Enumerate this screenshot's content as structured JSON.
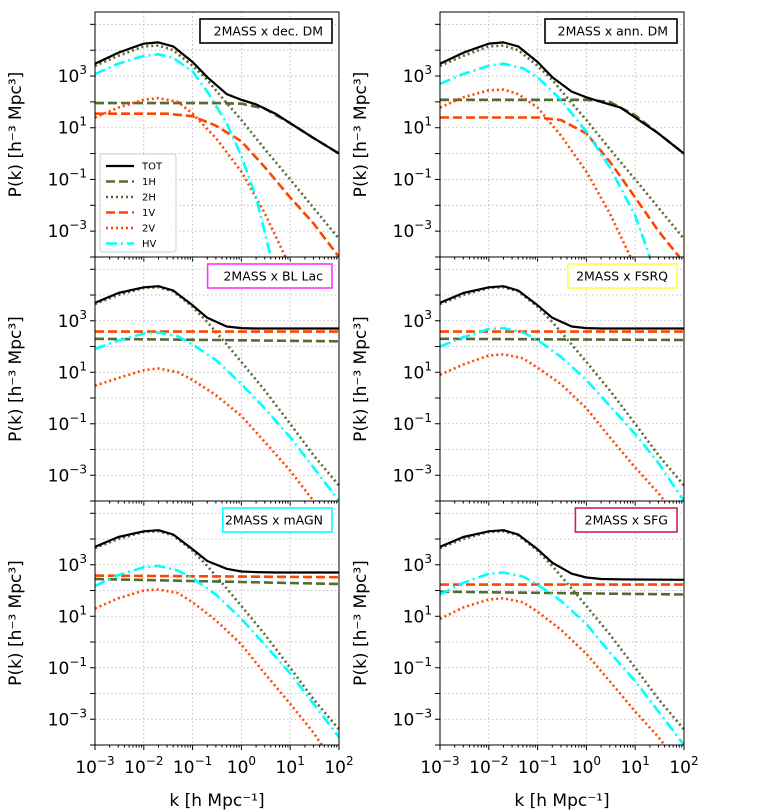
{
  "chart_data": {
    "type": "line",
    "layout": "3x2 grid of log-log panels",
    "xlabel": "k [h Mpc⁻¹]",
    "ylabel": "P(k) [h⁻³ Mpc³]",
    "x_scale": "log",
    "y_scale": "log",
    "xlim": [
      0.001,
      100
    ],
    "ylim": [
      0.0001,
      300000
    ],
    "xtick_exponents": [
      "-3",
      "-2",
      "-1",
      "0",
      "1",
      "2"
    ],
    "ytick_exponents": [
      "3",
      "1",
      "-1",
      "-3"
    ],
    "grid": true,
    "legend": {
      "panel": 0,
      "placement": "lower-left",
      "entries": [
        {
          "key": "TOT",
          "label": "TOT"
        },
        {
          "key": "1H",
          "label": "1H"
        },
        {
          "key": "2H",
          "label": "2H"
        },
        {
          "key": "1V",
          "label": "1V"
        },
        {
          "key": "2V",
          "label": "2V"
        },
        {
          "key": "HV",
          "label": "HV"
        }
      ]
    },
    "styles": {
      "TOT": {
        "color": "#000000",
        "dash": "",
        "width": 2.2
      },
      "1H": {
        "color": "#556b2f",
        "dash": "9,4",
        "width": 2.6
      },
      "2H": {
        "color": "#556b2f",
        "dash": "2,3",
        "width": 2.6
      },
      "1V": {
        "color": "#ff4500",
        "dash": "9,4",
        "width": 2.6
      },
      "2V": {
        "color": "#ff4500",
        "dash": "2,3",
        "width": 2.6
      },
      "HV": {
        "color": "#00ffff",
        "dash": "11,4,2,4",
        "width": 2.6
      }
    },
    "panels": [
      {
        "title": "2MASS x dec. DM",
        "title_border": "#000000",
        "series": {
          "TOT": {
            "x": [
              0.001,
              0.003,
              0.01,
              0.02,
              0.04,
              0.1,
              0.2,
              0.5,
              1,
              2,
              5,
              10,
              30,
              100
            ],
            "y": [
              3000,
              8000,
              18000,
              20000,
              14000,
              3500,
              900,
              200,
              120,
              80,
              35,
              15,
              4,
              1
            ]
          },
          "1H": {
            "x": [
              0.001,
              0.3,
              1,
              3,
              10,
              30,
              100
            ],
            "y": [
              90,
              90,
              85,
              55,
              15,
              4,
              1
            ]
          },
          "2H": {
            "x": [
              0.001,
              0.003,
              0.01,
              0.02,
              0.04,
              0.1,
              0.2,
              0.5,
              1,
              3,
              10,
              30,
              100
            ],
            "y": [
              2500,
              6000,
              14000,
              15000,
              10000,
              2500,
              700,
              90,
              20,
              1.5,
              0.1,
              0.008,
              0.0005
            ]
          },
          "1V": {
            "x": [
              0.001,
              0.03,
              0.1,
              0.3,
              1,
              3,
              10,
              30,
              100
            ],
            "y": [
              35,
              35,
              28,
              12,
              3,
              0.3,
              0.02,
              0.002,
              0.0001
            ]
          },
          "2V": {
            "x": [
              0.001,
              0.003,
              0.01,
              0.02,
              0.05,
              0.1,
              0.3,
              1,
              3,
              8
            ],
            "y": [
              25,
              60,
              120,
              140,
              100,
              35,
              4,
              0.2,
              0.005,
              0.0001
            ]
          },
          "HV": {
            "x": [
              0.001,
              0.003,
              0.01,
              0.02,
              0.04,
              0.1,
              0.2,
              0.5,
              1,
              2,
              4
            ],
            "y": [
              1200,
              3000,
              6000,
              7000,
              5000,
              1500,
              250,
              15,
              0.8,
              0.02,
              0.0001
            ]
          }
        }
      },
      {
        "title": "2MASS x ann. DM",
        "title_border": "#000000",
        "series": {
          "TOT": {
            "x": [
              0.001,
              0.003,
              0.01,
              0.02,
              0.04,
              0.1,
              0.2,
              0.5,
              1,
              2,
              5,
              10,
              30,
              100
            ],
            "y": [
              3000,
              8000,
              18000,
              20000,
              14000,
              3500,
              900,
              250,
              150,
              100,
              60,
              25,
              6,
              1
            ]
          },
          "1H": {
            "x": [
              0.001,
              1,
              3,
              10,
              30,
              100
            ],
            "y": [
              120,
              120,
              100,
              30,
              6,
              1
            ]
          },
          "2H": {
            "x": [
              0.001,
              0.003,
              0.01,
              0.02,
              0.04,
              0.1,
              0.2,
              0.5,
              1,
              3,
              10,
              30,
              100
            ],
            "y": [
              2500,
              6000,
              14000,
              15000,
              10000,
              2500,
              700,
              90,
              20,
              1.5,
              0.1,
              0.008,
              0.0005
            ]
          },
          "1V": {
            "x": [
              0.001,
              0.1,
              0.3,
              1,
              3,
              10,
              30,
              80
            ],
            "y": [
              25,
              25,
              20,
              6,
              0.5,
              0.02,
              0.001,
              0.0001
            ]
          },
          "2V": {
            "x": [
              0.001,
              0.003,
              0.01,
              0.02,
              0.04,
              0.1,
              0.3,
              1,
              3,
              8
            ],
            "y": [
              60,
              150,
              280,
              300,
              200,
              60,
              5,
              0.2,
              0.005,
              0.0001
            ]
          },
          "HV": {
            "x": [
              0.001,
              0.003,
              0.01,
              0.02,
              0.05,
              0.1,
              0.3,
              1,
              3,
              10,
              20
            ],
            "y": [
              500,
              1200,
              2500,
              3000,
              2000,
              900,
              120,
              7,
              0.3,
              0.004,
              0.0001
            ]
          }
        }
      },
      {
        "title": "2MASS x BL Lac",
        "title_border": "#ff33ff",
        "series": {
          "TOT": {
            "x": [
              0.001,
              0.003,
              0.01,
              0.02,
              0.04,
              0.1,
              0.2,
              0.5,
              1,
              2,
              5,
              100
            ],
            "y": [
              5000,
              12000,
              20000,
              22000,
              15000,
              4000,
              1300,
              600,
              520,
              500,
              500,
              500
            ]
          },
          "1H": {
            "x": [
              0.001,
              100
            ],
            "y": [
              200,
              160
            ]
          },
          "2H": {
            "x": [
              0.001,
              0.003,
              0.01,
              0.02,
              0.04,
              0.1,
              0.2,
              0.5,
              1,
              3,
              10,
              30,
              100
            ],
            "y": [
              4500,
              10000,
              19000,
              20000,
              14000,
              3500,
              900,
              120,
              25,
              2,
              0.1,
              0.006,
              0.0004
            ]
          },
          "1V": {
            "x": [
              0.001,
              100
            ],
            "y": [
              380,
              380
            ]
          },
          "2V": {
            "x": [
              0.001,
              0.003,
              0.01,
              0.02,
              0.05,
              0.1,
              0.3,
              1,
              3,
              10,
              30,
              100
            ],
            "y": [
              3,
              6,
              12,
              14,
              10,
              5,
              1.3,
              0.2,
              0.02,
              0.0015,
              0.0001,
              1e-05
            ]
          },
          "HV": {
            "x": [
              0.001,
              0.003,
              0.01,
              0.02,
              0.05,
              0.1,
              0.3,
              1,
              3,
              10,
              30,
              100
            ],
            "y": [
              80,
              170,
              320,
              350,
              250,
              120,
              30,
              3.5,
              0.4,
              0.03,
              0.002,
              0.0001
            ]
          }
        }
      },
      {
        "title": "2MASS x FSRQ",
        "title_border": "#ffff44",
        "series": {
          "TOT": {
            "x": [
              0.001,
              0.003,
              0.01,
              0.02,
              0.04,
              0.1,
              0.2,
              0.5,
              1,
              2,
              5,
              100
            ],
            "y": [
              5000,
              12000,
              20000,
              22000,
              15000,
              4000,
              1300,
              600,
              520,
              500,
              500,
              500
            ]
          },
          "1H": {
            "x": [
              0.001,
              100
            ],
            "y": [
              200,
              180
            ]
          },
          "2H": {
            "x": [
              0.001,
              0.003,
              0.01,
              0.02,
              0.04,
              0.1,
              0.2,
              0.5,
              1,
              3,
              10,
              30,
              100
            ],
            "y": [
              4500,
              10000,
              19000,
              20000,
              14000,
              3500,
              900,
              120,
              25,
              2,
              0.1,
              0.006,
              0.0004
            ]
          },
          "1V": {
            "x": [
              0.001,
              100
            ],
            "y": [
              380,
              380
            ]
          },
          "2V": {
            "x": [
              0.001,
              0.003,
              0.01,
              0.02,
              0.05,
              0.1,
              0.3,
              1,
              3,
              10,
              30,
              100
            ],
            "y": [
              8,
              20,
              45,
              50,
              35,
              15,
              3.5,
              0.4,
              0.03,
              0.002,
              0.0002,
              1e-05
            ]
          },
          "HV": {
            "x": [
              0.001,
              0.003,
              0.01,
              0.02,
              0.05,
              0.1,
              0.3,
              1,
              3,
              10,
              30,
              100
            ],
            "y": [
              100,
              230,
              480,
              520,
              350,
              180,
              40,
              5,
              0.5,
              0.04,
              0.003,
              0.0001
            ]
          }
        }
      },
      {
        "title": "2MASS x mAGN",
        "title_border": "#00ffff",
        "series": {
          "TOT": {
            "x": [
              0.001,
              0.003,
              0.01,
              0.02,
              0.04,
              0.1,
              0.2,
              0.5,
              1,
              2,
              5,
              100
            ],
            "y": [
              5000,
              12000,
              20000,
              22000,
              15000,
              4000,
              1400,
              700,
              550,
              520,
              500,
              500
            ]
          },
          "1H": {
            "x": [
              0.001,
              100
            ],
            "y": [
              280,
              180
            ]
          },
          "2H": {
            "x": [
              0.001,
              0.003,
              0.01,
              0.02,
              0.04,
              0.1,
              0.2,
              0.5,
              1,
              3,
              10,
              30,
              100
            ],
            "y": [
              4500,
              10000,
              19000,
              20000,
              14000,
              3500,
              900,
              120,
              25,
              2,
              0.1,
              0.006,
              0.0004
            ]
          },
          "1V": {
            "x": [
              0.001,
              100
            ],
            "y": [
              380,
              330
            ]
          },
          "2V": {
            "x": [
              0.001,
              0.003,
              0.01,
              0.02,
              0.05,
              0.1,
              0.3,
              1,
              3,
              10,
              30,
              100
            ],
            "y": [
              20,
              50,
              100,
              110,
              80,
              35,
              7,
              0.8,
              0.06,
              0.004,
              0.0003,
              1e-05
            ]
          },
          "HV": {
            "x": [
              0.001,
              0.003,
              0.01,
              0.02,
              0.05,
              0.1,
              0.3,
              1,
              3,
              10,
              30,
              100
            ],
            "y": [
              150,
              400,
              800,
              900,
              600,
              300,
              70,
              8,
              0.8,
              0.06,
              0.004,
              0.0002
            ]
          }
        }
      },
      {
        "title": "2MASS x SFG",
        "title_border": "#cc2244",
        "series": {
          "TOT": {
            "x": [
              0.001,
              0.003,
              0.01,
              0.02,
              0.04,
              0.1,
              0.2,
              0.5,
              1,
              2,
              5,
              100
            ],
            "y": [
              5000,
              12000,
              20000,
              22000,
              15000,
              4000,
              1200,
              450,
              320,
              280,
              270,
              260
            ]
          },
          "1H": {
            "x": [
              0.001,
              100
            ],
            "y": [
              90,
              70
            ]
          },
          "2H": {
            "x": [
              0.001,
              0.003,
              0.01,
              0.02,
              0.04,
              0.1,
              0.2,
              0.5,
              1,
              3,
              10,
              30,
              100
            ],
            "y": [
              4500,
              10000,
              19000,
              20000,
              14000,
              3500,
              900,
              120,
              25,
              2,
              0.1,
              0.006,
              0.0004
            ]
          },
          "1V": {
            "x": [
              0.001,
              100
            ],
            "y": [
              170,
              170
            ]
          },
          "2V": {
            "x": [
              0.001,
              0.003,
              0.01,
              0.02,
              0.05,
              0.1,
              0.3,
              1,
              3,
              10,
              30,
              100
            ],
            "y": [
              8,
              22,
              45,
              50,
              35,
              15,
              3,
              0.35,
              0.03,
              0.002,
              0.0002,
              1e-05
            ]
          },
          "HV": {
            "x": [
              0.001,
              0.003,
              0.01,
              0.02,
              0.05,
              0.1,
              0.3,
              1,
              3,
              10,
              30,
              100
            ],
            "y": [
              70,
              200,
              450,
              500,
              350,
              170,
              40,
              5,
              0.4,
              0.03,
              0.002,
              0.0001
            ]
          }
        }
      }
    ]
  }
}
